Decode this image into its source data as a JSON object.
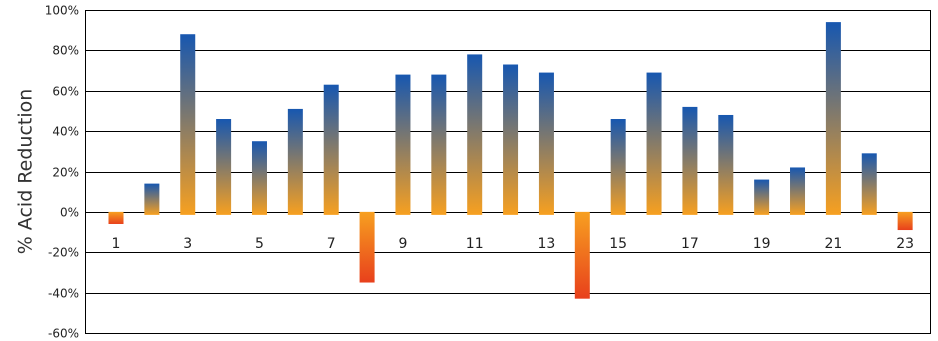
{
  "chart_data": {
    "type": "bar",
    "title": "",
    "xlabel": "",
    "ylabel": "% Acid Reduction",
    "ylim": [
      -60,
      100
    ],
    "y_ticks": [
      100,
      80,
      60,
      40,
      20,
      0,
      -20,
      -40,
      -60
    ],
    "y_tick_labels": [
      "100%",
      "80%",
      "60%",
      "40%",
      "20%",
      "0%",
      "-20%",
      "-40%",
      "-60%"
    ],
    "categories": [
      "1",
      "2",
      "3",
      "4",
      "5",
      "6",
      "7",
      "8",
      "9",
      "10",
      "11",
      "12",
      "13",
      "14",
      "15",
      "16",
      "17",
      "18",
      "19",
      "20",
      "21",
      "22",
      "23"
    ],
    "x_tick_labels_shown": [
      "1",
      "3",
      "5",
      "7",
      "9",
      "11",
      "13",
      "15",
      "17",
      "19",
      "21",
      "23"
    ],
    "values": [
      -6,
      14,
      88,
      46,
      35,
      51,
      63,
      -35,
      68,
      68,
      78,
      73,
      69,
      -43,
      46,
      69,
      52,
      48,
      16,
      22,
      94,
      29,
      -9
    ],
    "grid": true,
    "colors": {
      "positive_top": "#1757b0",
      "positive_bottom": "#f7a020",
      "negative_top": "#f7a020",
      "negative_bottom": "#e8401c",
      "gridline": "#000000"
    }
  }
}
